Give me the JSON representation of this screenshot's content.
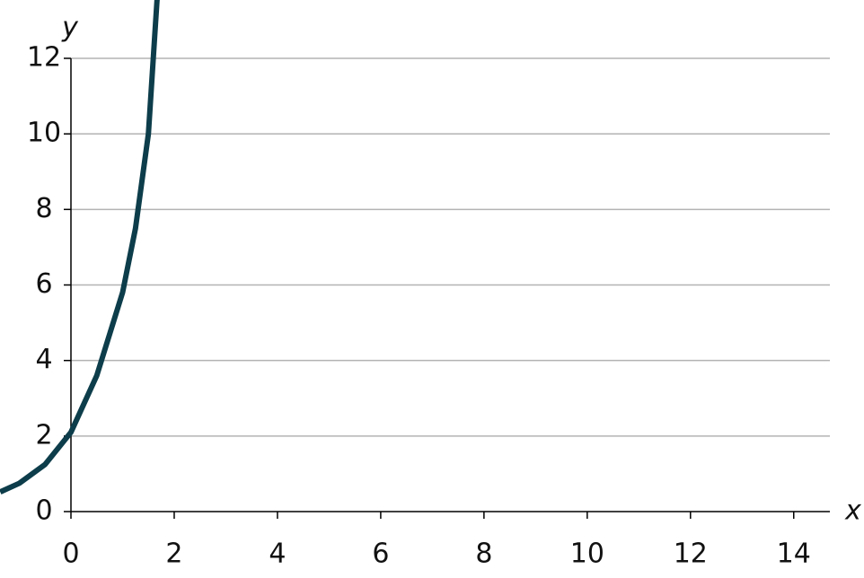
{
  "chart_data": {
    "type": "line",
    "x_label": "x",
    "y_label": "y",
    "x": [
      -1.37,
      -1,
      -0.5,
      0,
      0.5,
      1,
      1.25,
      1.5,
      1.67
    ],
    "series": [
      {
        "color": "#0d3d4a",
        "values": [
          0.52,
          0.75,
          1.25,
          2.1,
          3.6,
          5.8,
          7.5,
          10.0,
          13.6
        ]
      }
    ],
    "xlim": [
      0,
      14.7
    ],
    "ylim": [
      0,
      12
    ],
    "xticks": [
      0,
      2,
      4,
      6,
      8,
      10,
      12,
      14
    ],
    "yticks": [
      0,
      2,
      4,
      6,
      8,
      10,
      12
    ],
    "grid": true
  }
}
